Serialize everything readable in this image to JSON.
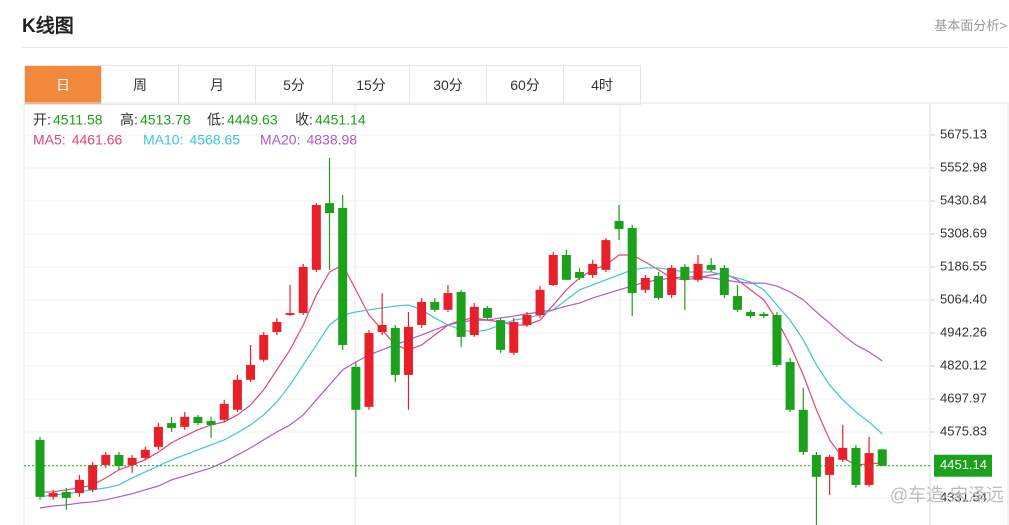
{
  "header": {
    "title": "K线图",
    "link": "基本面分析>"
  },
  "tabs": [
    "日",
    "周",
    "月",
    "5分",
    "15分",
    "30分",
    "60分",
    "4时"
  ],
  "watermark": "@车造-宋泽远",
  "chart_data": {
    "type": "candlestick",
    "info_labels": [
      "开:",
      "高:",
      "低:",
      "收:"
    ],
    "open": [
      4547,
      4336,
      4354,
      4350,
      4362,
      4454,
      4491,
      4454,
      4480,
      4521,
      4609,
      4595,
      4632,
      4617,
      4621,
      4658,
      4769,
      4843,
      4946,
      5009,
      5016,
      5176,
      5423,
      5405,
      4817,
      4669,
      4946,
      4961,
      4787,
      4972,
      5057,
      5028,
      5094,
      4935,
      5035,
      4990,
      4869,
      4972,
      5009,
      5120,
      5231,
      5168,
      5157,
      5176,
      5357,
      5331,
      5102,
      5153,
      5083,
      5187,
      5139,
      5194,
      5183,
      5079,
      5020,
      5013,
      5009,
      4835,
      4658,
      4491,
      4417,
      4473,
      4517,
      4380,
      4511.58
    ],
    "high": [
      4558,
      4362,
      4369,
      4417,
      4465,
      4502,
      4502,
      4491,
      4521,
      4609,
      4632,
      4650,
      4639,
      4632,
      4695,
      4787,
      4898,
      4946,
      4998,
      5120,
      5198,
      5423,
      5590,
      5453,
      4835,
      4954,
      5090,
      4972,
      5020,
      5072,
      5072,
      5120,
      5102,
      5053,
      5042,
      4998,
      4998,
      5020,
      5116,
      5242,
      5250,
      5183,
      5213,
      5294,
      5416,
      5342,
      5157,
      5168,
      5194,
      5198,
      5231,
      5220,
      5194,
      5120,
      5028,
      5020,
      5020,
      4850,
      4739,
      4502,
      4491,
      4602,
      4528,
      4558,
      4513.78
    ],
    "low": [
      4325,
      4325,
      4288,
      4336,
      4354,
      4443,
      4436,
      4425,
      4473,
      4510,
      4576,
      4584,
      4602,
      4554,
      4613,
      4650,
      4761,
      4835,
      4935,
      5005,
      5009,
      5168,
      5176,
      4880,
      4410,
      4658,
      4935,
      4761,
      4658,
      4961,
      5020,
      5020,
      4891,
      4928,
      4990,
      4869,
      4861,
      4965,
      4998,
      5116,
      5139,
      5139,
      5146,
      5168,
      5286,
      5005,
      5090,
      5065,
      5072,
      5028,
      5131,
      5168,
      5072,
      5020,
      4998,
      4998,
      4817,
      4650,
      4491,
      4232,
      4343,
      4465,
      4369,
      4373,
      4449.63
    ],
    "close": [
      4336,
      4350,
      4332,
      4399,
      4454,
      4491,
      4450,
      4480,
      4510,
      4595,
      4591,
      4632,
      4609,
      4602,
      4680,
      4769,
      4824,
      4935,
      4983,
      5016,
      5187,
      5416,
      5386,
      4898,
      4658,
      4942,
      4972,
      4787,
      4965,
      5057,
      5028,
      5090,
      4928,
      5039,
      4998,
      4880,
      4983,
      5009,
      5102,
      5231,
      5139,
      5146,
      5198,
      5286,
      5327,
      5090,
      5146,
      5072,
      5183,
      5139,
      5198,
      5176,
      5083,
      5028,
      5005,
      5005,
      4824,
      4658,
      4502,
      4410,
      4484,
      4517,
      4380,
      4498,
      4451.14
    ],
    "up_color": "#e8202a",
    "down_color": "#1ba11b",
    "ma_lines": [
      {
        "name": "MA5",
        "label": "MA5:",
        "color": "#e0457b",
        "values": [
          4354,
          4354,
          4362,
          4369,
          4380,
          4406,
          4436,
          4454,
          4473,
          4502,
          4536,
          4561,
          4584,
          4602,
          4613,
          4639,
          4676,
          4732,
          4806,
          4880,
          4972,
          5083,
          5168,
          5194,
          5102,
          5009,
          4954,
          4898,
          4880,
          4898,
          4935,
          4972,
          4990,
          4998,
          4990,
          4983,
          4972,
          4972,
          4990,
          5046,
          5102,
          5146,
          5176,
          5194,
          5231,
          5231,
          5205,
          5176,
          5146,
          5139,
          5146,
          5157,
          5164,
          5139,
          5102,
          5065,
          4990,
          4898,
          4787,
          4658,
          4547,
          4480,
          4454,
          4458,
          4461.66
        ]
      },
      {
        "name": "MA10",
        "label": "MA10:",
        "color": "#3ec4dc",
        "values": [
          4336,
          4343,
          4347,
          4354,
          4362,
          4369,
          4380,
          4406,
          4428,
          4450,
          4473,
          4491,
          4510,
          4528,
          4547,
          4573,
          4602,
          4639,
          4687,
          4750,
          4824,
          4898,
          4972,
          5009,
          5020,
          5028,
          5035,
          5042,
          5046,
          5028,
          4998,
          4972,
          4954,
          4946,
          4954,
          4972,
          4990,
          4998,
          5009,
          5028,
          5065,
          5102,
          5120,
          5139,
          5157,
          5176,
          5183,
          5183,
          5176,
          5168,
          5168,
          5168,
          5157,
          5146,
          5131,
          5102,
          5046,
          4990,
          4917,
          4824,
          4750,
          4695,
          4650,
          4613,
          4568.65
        ]
      },
      {
        "name": "MA20",
        "label": "MA20:",
        "color": "#b05cc6",
        "values": [
          4295,
          4302,
          4306,
          4313,
          4317,
          4325,
          4336,
          4347,
          4362,
          4376,
          4399,
          4413,
          4428,
          4443,
          4465,
          4491,
          4517,
          4547,
          4576,
          4602,
          4639,
          4695,
          4750,
          4806,
          4835,
          4861,
          4880,
          4898,
          4917,
          4935,
          4954,
          4972,
          4983,
          4990,
          4990,
          4998,
          5005,
          5013,
          5020,
          5028,
          5042,
          5053,
          5072,
          5087,
          5102,
          5116,
          5131,
          5139,
          5146,
          5150,
          5150,
          5146,
          5139,
          5131,
          5127,
          5127,
          5116,
          5094,
          5065,
          5020,
          4979,
          4935,
          4898,
          4872,
          4838.98
        ]
      }
    ],
    "ylim": [
      4231.7,
      5793.5
    ],
    "yticks": [
      4331.54,
      4575.83,
      4697.97,
      4820.12,
      4942.26,
      {
        "value": 5064.4,
        "label": "5064.40"
      },
      5186.55,
      5308.69,
      5430.84,
      5552.98,
      5675.13
    ],
    "grid": true
  }
}
